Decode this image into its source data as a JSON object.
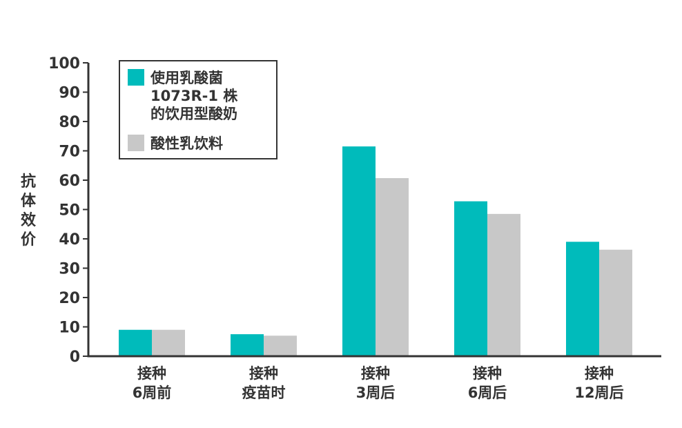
{
  "chart_data": {
    "type": "bar",
    "title": "",
    "xlabel": "",
    "ylabel": "抗体效价",
    "ylim": [
      0,
      100
    ],
    "yticks": [
      0,
      10,
      20,
      30,
      40,
      50,
      60,
      70,
      80,
      90,
      100
    ],
    "categories": [
      [
        "接种",
        "6周前"
      ],
      [
        "接种",
        "疫苗时"
      ],
      [
        "接种",
        "3周后"
      ],
      [
        "接种",
        "6周后"
      ],
      [
        "接种",
        "12周后"
      ]
    ],
    "series": [
      {
        "name": "使用乳酸菌 1073R-1 株 的饮用型酸奶",
        "name_lines": [
          "使用乳酸菌",
          "1073R-1 株",
          "的饮用型酸奶"
        ],
        "color": "#00BBBB",
        "values": [
          9,
          7.5,
          71.5,
          52.8,
          39
        ]
      },
      {
        "name": "酸性乳饮料",
        "name_lines": [
          "酸性乳饮料"
        ],
        "color": "#C8C8C8",
        "values": [
          9,
          7,
          60.7,
          48.5,
          36.3
        ]
      }
    ],
    "legend_position": "top-left",
    "grid": false
  }
}
